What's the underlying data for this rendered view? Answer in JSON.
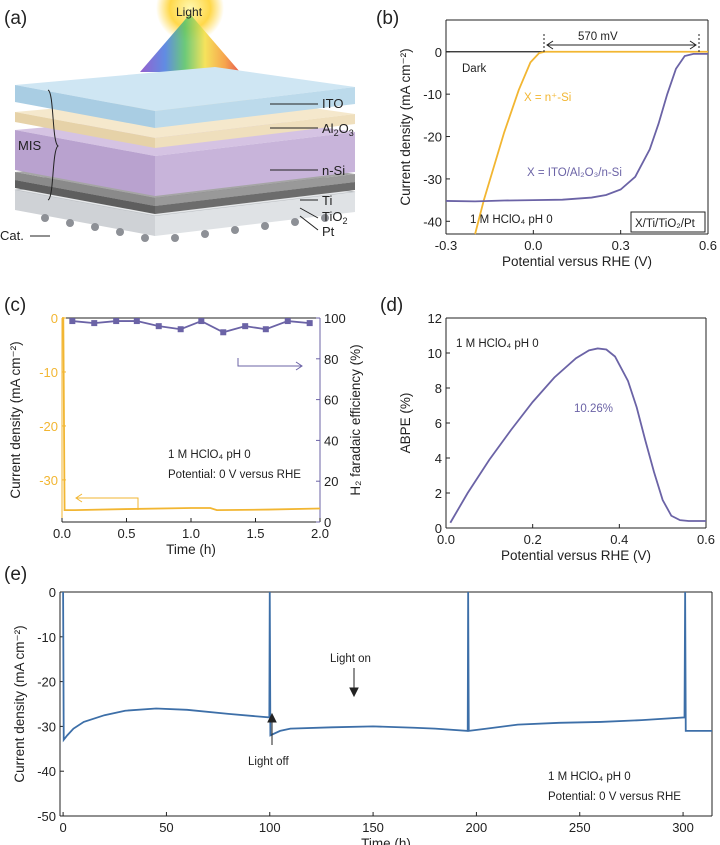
{
  "panel_labels": [
    "(a)",
    "(b)",
    "(c)",
    "(d)",
    "(e)"
  ],
  "schematic": {
    "light_label": "Light",
    "layers": [
      "ITO",
      "Al2O3",
      "n-Si",
      "Ti",
      "TiO2",
      "Pt"
    ],
    "layer_labels": {
      "ito": "ITO",
      "al2o3": "Al",
      "al2o3_sub": "2",
      "al2o3_end": "O",
      "al2o3_sub2": "3",
      "nsi": "n-Si",
      "ti": "Ti",
      "tio2": "TiO",
      "tio2_sub": "2",
      "pt": "Pt"
    },
    "group_label": "MIS",
    "cat_label": "Cat."
  },
  "colors": {
    "yellow": "#f2b632",
    "purple": "#6b63a6",
    "blue": "#3d6fa8",
    "dark": "#222222"
  },
  "chart_data": [
    {
      "id": "b",
      "type": "line",
      "xlabel": "Potential versus RHE (V)",
      "ylabel": "Current density (mA cm⁻²)",
      "xlim": [
        -0.3,
        0.6
      ],
      "ylim": [
        -43,
        7.5
      ],
      "xticks": [
        -0.3,
        0.0,
        0.3,
        0.6
      ],
      "xtick_labels": [
        "-0.3",
        "0.0",
        "0.3",
        "0.6"
      ],
      "yticks": [
        0,
        -10,
        -20,
        -30,
        -40
      ],
      "ytick_labels": [
        "0",
        "-10",
        "-20",
        "-30",
        "-40"
      ],
      "series": [
        {
          "name": "Dark",
          "color": "#222222",
          "x": [
            -0.3,
            0.6
          ],
          "y": [
            0,
            0
          ]
        },
        {
          "name": "X = n⁺-Si",
          "color": "#f2b632",
          "x": [
            -0.2,
            -0.17,
            -0.1,
            -0.05,
            -0.01,
            0.02,
            0.04,
            0.6
          ],
          "y": [
            -43,
            -35,
            -19,
            -9,
            -2.5,
            -0.3,
            0,
            0
          ]
        },
        {
          "name": "X = ITO/Al₂O₃/n-Si",
          "color": "#6b63a6",
          "x": [
            -0.3,
            -0.2,
            -0.1,
            0.0,
            0.1,
            0.2,
            0.25,
            0.3,
            0.35,
            0.4,
            0.43,
            0.46,
            0.49,
            0.52,
            0.55,
            0.6
          ],
          "y": [
            -35.2,
            -35.3,
            -35.1,
            -35,
            -34.9,
            -34.4,
            -33.8,
            -32.5,
            -29.5,
            -23,
            -17,
            -10,
            -4,
            -1,
            -0.5,
            -0.5
          ]
        }
      ],
      "annotations": {
        "dark": "Dark",
        "n_si": "X = n⁺-Si",
        "mis": "X = ITO/Al₂O₃/n-Si",
        "electrolyte": "1 M HClO₄ pH 0",
        "device": "X/Ti/TiO₂/Pt",
        "shift": "570 mV"
      }
    },
    {
      "id": "c",
      "type": "line",
      "xlabel": "Time (h)",
      "ylabel": "Current density (mA cm⁻²)",
      "ylabel_right": "H₂ faradaic efficiency (%)",
      "xlim": [
        0,
        2.0
      ],
      "ylim": [
        -37.8,
        0
      ],
      "ylim_right": [
        0,
        100
      ],
      "xticks": [
        0,
        0.5,
        1.0,
        1.5,
        2.0
      ],
      "xtick_labels": [
        "0.0",
        "0.5",
        "1.0",
        "1.5",
        "2.0"
      ],
      "yticks": [
        0,
        -10,
        -20,
        -30
      ],
      "ytick_labels": [
        "0",
        "-10",
        "-20",
        "-30"
      ],
      "yticks_right": [
        0,
        20,
        40,
        60,
        80,
        100
      ],
      "ytick_labels_right": [
        "0",
        "20",
        "40",
        "60",
        "80",
        "100"
      ],
      "series": [
        {
          "name": "Current density",
          "color": "#f2b632",
          "axis": "left",
          "x": [
            0.0,
            0.01,
            0.02,
            0.1,
            0.5,
            1.0,
            1.15,
            1.2,
            1.6,
            2.0
          ],
          "y": [
            0,
            0,
            -35.6,
            -35.6,
            -35.4,
            -35.2,
            -35.2,
            -35.6,
            -35.5,
            -35.3
          ]
        },
        {
          "name": "H₂ faradaic efficiency",
          "color": "#6b63a6",
          "axis": "right",
          "marker": "square",
          "x": [
            0.08,
            0.25,
            0.42,
            0.58,
            0.75,
            0.92,
            1.08,
            1.25,
            1.42,
            1.58,
            1.75,
            1.92
          ],
          "y": [
            98.5,
            97.5,
            98.5,
            98.5,
            96,
            94.5,
            98.5,
            93,
            96,
            94.5,
            98.5,
            97.5
          ]
        }
      ],
      "annotations": {
        "electrolyte": "1 M HClO₄ pH 0",
        "potential": "Potential: 0 V versus RHE"
      }
    },
    {
      "id": "d",
      "type": "line",
      "xlabel": "Potential versus RHE (V)",
      "ylabel": "ABPE (%)",
      "xlim": [
        0,
        0.6
      ],
      "ylim": [
        0,
        12
      ],
      "xticks": [
        0,
        0.2,
        0.4,
        0.6
      ],
      "xtick_labels": [
        "0.0",
        "0.2",
        "0.4",
        "0.6"
      ],
      "yticks": [
        0,
        2,
        4,
        6,
        8,
        10,
        12
      ],
      "ytick_labels": [
        "0",
        "2",
        "4",
        "6",
        "8",
        "10",
        "12"
      ],
      "series": [
        {
          "name": "ABPE",
          "color": "#6b63a6",
          "x": [
            0.01,
            0.05,
            0.1,
            0.15,
            0.2,
            0.25,
            0.3,
            0.33,
            0.35,
            0.37,
            0.39,
            0.42,
            0.44,
            0.46,
            0.48,
            0.5,
            0.52,
            0.54,
            0.56,
            0.6
          ],
          "y": [
            0.3,
            2.0,
            3.9,
            5.6,
            7.2,
            8.6,
            9.7,
            10.15,
            10.26,
            10.2,
            9.8,
            8.4,
            6.9,
            5.0,
            3.2,
            1.6,
            0.7,
            0.45,
            0.4,
            0.4
          ]
        }
      ],
      "annotations": {
        "electrolyte": "1 M HClO₄ pH 0",
        "peak": "10.26%"
      }
    },
    {
      "id": "e",
      "type": "line",
      "xlabel": "Time (h)",
      "ylabel": "Current density (mA cm⁻²)",
      "xlim": [
        -1.5,
        314
      ],
      "ylim": [
        -50,
        0
      ],
      "xticks": [
        0,
        50,
        100,
        150,
        200,
        250,
        300
      ],
      "xtick_labels": [
        "0",
        "50",
        "100",
        "150",
        "200",
        "250",
        "300"
      ],
      "yticks": [
        0,
        -10,
        -20,
        -30,
        -40,
        -50
      ],
      "ytick_labels": [
        "0",
        "-10",
        "-20",
        "-30",
        "-40",
        "-50"
      ],
      "series": [
        {
          "name": "Current density",
          "color": "#3d6fa8",
          "x": [
            0,
            0.3,
            2,
            5,
            10,
            20,
            30,
            45,
            60,
            80,
            99.8,
            100,
            100.3,
            105,
            110,
            130,
            150,
            170,
            180,
            195.8,
            196,
            196.3,
            205,
            220,
            240,
            260,
            280,
            300.7,
            301,
            301.3,
            314
          ],
          "y": [
            0,
            -33,
            -32,
            -30.5,
            -29,
            -27.5,
            -26.5,
            -26,
            -26.3,
            -27.2,
            -28,
            0,
            -32,
            -31,
            -30.5,
            -30.2,
            -30,
            -30.3,
            -30.5,
            -31,
            0,
            -31,
            -30.5,
            -29.6,
            -29.2,
            -29,
            -28.6,
            -28,
            0,
            -31,
            -31
          ]
        }
      ],
      "annotations": {
        "light_off": "Light off",
        "light_on": "Light on",
        "electrolyte": "1 M HClO₄ pH 0",
        "potential": "Potential: 0 V versus RHE"
      }
    }
  ]
}
